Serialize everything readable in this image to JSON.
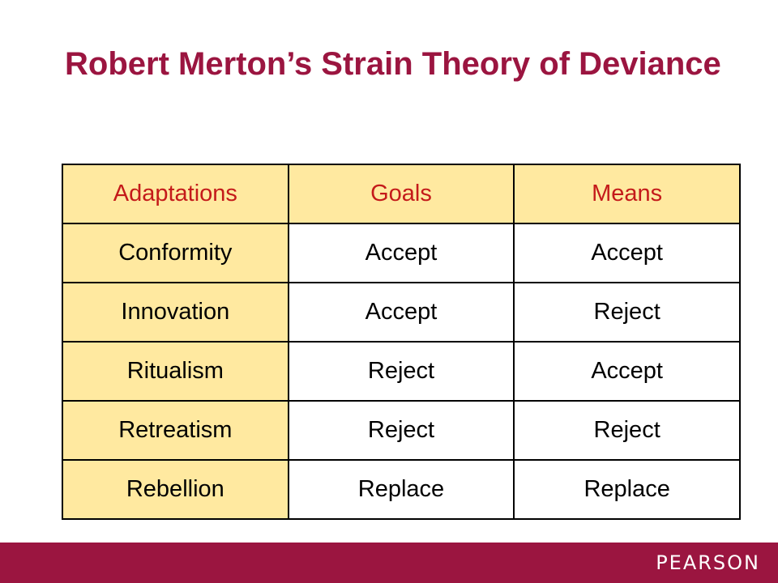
{
  "title": "Robert Merton’s Strain Theory of Deviance",
  "table": {
    "headers": [
      "Adaptations",
      "Goals",
      "Means"
    ],
    "rows": [
      [
        "Conformity",
        "Accept",
        "Accept"
      ],
      [
        "Innovation",
        "Accept",
        "Reject"
      ],
      [
        "Ritualism",
        "Reject",
        "Accept"
      ],
      [
        "Retreatism",
        "Reject",
        "Reject"
      ],
      [
        "Rebellion",
        "Replace",
        "Replace"
      ]
    ]
  },
  "footer": {
    "logo_text": "PEARSON"
  },
  "colors": {
    "accent": "#9b1540",
    "header_text": "#c41a1a",
    "highlight_fill": "#ffe9a0"
  }
}
